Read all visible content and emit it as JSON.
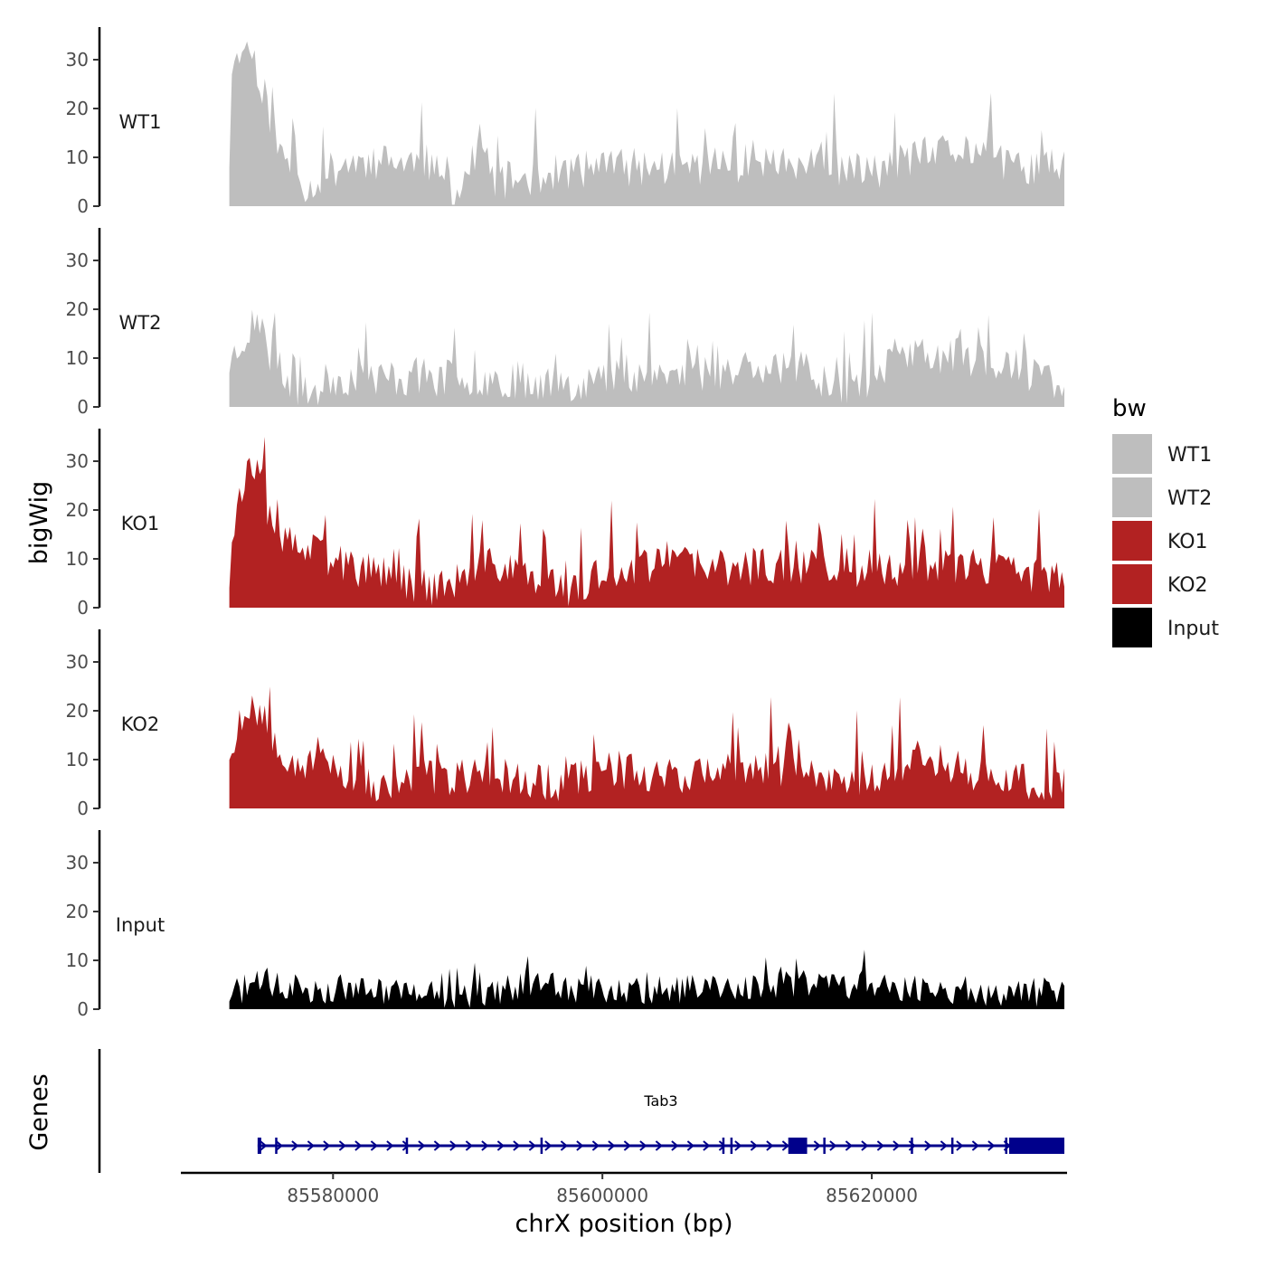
{
  "chart_data": {
    "type": "area",
    "y_axis_title": "bigWig",
    "gene_track_title": "Genes",
    "x_axis_title": "chrX position (bp)",
    "x_range": [
      85568700,
      85634500
    ],
    "data_x_range": [
      85572300,
      85634300
    ],
    "x_ticks": [
      {
        "value": 85580000,
        "label": "85580000"
      },
      {
        "value": 85600000,
        "label": "85600000"
      },
      {
        "value": 85620000,
        "label": "85620000"
      }
    ],
    "y_range": [
      0,
      36
    ],
    "y_ticks": [
      {
        "value": 0,
        "label": "0"
      },
      {
        "value": 10,
        "label": "10"
      },
      {
        "value": 20,
        "label": "20"
      },
      {
        "value": 30,
        "label": "30"
      }
    ],
    "tracks": [
      {
        "name": "WT1",
        "color": "#BEBEBE",
        "baseline": 8,
        "noise": 4,
        "spike_rate": 0.08,
        "spike_height": 8,
        "seed": 11,
        "anchors": [
          [
            85572300,
            10
          ],
          [
            85572700,
            28
          ],
          [
            85573300,
            34
          ],
          [
            85574200,
            30
          ],
          [
            85575000,
            22
          ],
          [
            85576000,
            11
          ],
          [
            85577500,
            7
          ],
          [
            85578200,
            3
          ],
          [
            85579000,
            6
          ],
          [
            85581000,
            9
          ],
          [
            85583000,
            9
          ],
          [
            85587000,
            9
          ],
          [
            85589000,
            2
          ],
          [
            85591000,
            12
          ],
          [
            85592000,
            5
          ],
          [
            85600000,
            8
          ],
          [
            85605000,
            8
          ],
          [
            85612000,
            9
          ],
          [
            85620000,
            7
          ],
          [
            85623000,
            10
          ],
          [
            85628000,
            12
          ],
          [
            85630000,
            8
          ],
          [
            85634300,
            8
          ]
        ]
      },
      {
        "name": "WT2",
        "color": "#BEBEBE",
        "baseline": 7,
        "noise": 4,
        "spike_rate": 0.08,
        "spike_height": 7,
        "seed": 23,
        "anchors": [
          [
            85572300,
            9
          ],
          [
            85573500,
            15
          ],
          [
            85574500,
            16
          ],
          [
            85575500,
            9
          ],
          [
            85577000,
            5
          ],
          [
            85578000,
            2
          ],
          [
            85580000,
            6
          ],
          [
            85586000,
            6
          ],
          [
            85590000,
            6
          ],
          [
            85598000,
            5
          ],
          [
            85603000,
            7
          ],
          [
            85608000,
            6
          ],
          [
            85611000,
            9
          ],
          [
            85615000,
            8
          ],
          [
            85617500,
            4
          ],
          [
            85620000,
            6
          ],
          [
            85622000,
            11
          ],
          [
            85628000,
            10
          ],
          [
            85634300,
            5
          ]
        ]
      },
      {
        "name": "KO1",
        "color": "#B22222",
        "baseline": 8,
        "noise": 4,
        "spike_rate": 0.09,
        "spike_height": 9,
        "seed": 37,
        "anchors": [
          [
            85572300,
            6
          ],
          [
            85572800,
            20
          ],
          [
            85573500,
            28
          ],
          [
            85574500,
            27
          ],
          [
            85575200,
            20
          ],
          [
            85576500,
            13
          ],
          [
            85578000,
            12
          ],
          [
            85580500,
            9
          ],
          [
            85583000,
            7
          ],
          [
            85586000,
            5
          ],
          [
            85588000,
            4
          ],
          [
            85592000,
            9
          ],
          [
            85596000,
            6
          ],
          [
            85597200,
            2
          ],
          [
            85600000,
            7
          ],
          [
            85605000,
            10
          ],
          [
            85608000,
            8
          ],
          [
            85614000,
            9
          ],
          [
            85620000,
            7
          ],
          [
            85624000,
            9
          ],
          [
            85628000,
            8
          ],
          [
            85632000,
            7
          ],
          [
            85634300,
            5
          ]
        ]
      },
      {
        "name": "KO2",
        "color": "#B22222",
        "baseline": 7,
        "noise": 4,
        "spike_rate": 0.09,
        "spike_height": 8,
        "seed": 53,
        "anchors": [
          [
            85572300,
            7
          ],
          [
            85573000,
            19
          ],
          [
            85574000,
            22
          ],
          [
            85575000,
            18
          ],
          [
            85576500,
            11
          ],
          [
            85578000,
            9
          ],
          [
            85579500,
            12
          ],
          [
            85580500,
            7
          ],
          [
            85583000,
            5
          ],
          [
            85584000,
            3
          ],
          [
            85586000,
            6
          ],
          [
            85592000,
            7
          ],
          [
            85597000,
            5
          ],
          [
            85600000,
            8
          ],
          [
            85606000,
            7
          ],
          [
            85612000,
            8
          ],
          [
            85618000,
            6
          ],
          [
            85622000,
            8
          ],
          [
            85624000,
            11
          ],
          [
            85628000,
            7
          ],
          [
            85632000,
            5
          ],
          [
            85634300,
            6
          ]
        ]
      },
      {
        "name": "Input",
        "color": "#000000",
        "baseline": 4,
        "noise": 3,
        "spike_rate": 0.07,
        "spike_height": 5,
        "seed": 71,
        "anchors": [
          [
            85572300,
            3
          ],
          [
            85574000,
            5
          ],
          [
            85580000,
            4
          ],
          [
            85586000,
            4
          ],
          [
            85589000,
            2
          ],
          [
            85594000,
            5
          ],
          [
            85600000,
            4
          ],
          [
            85606000,
            4
          ],
          [
            85614000,
            5
          ],
          [
            85620000,
            5
          ],
          [
            85626000,
            4
          ],
          [
            85631000,
            3
          ],
          [
            85634300,
            4
          ]
        ]
      }
    ],
    "legend": {
      "title": "bw",
      "entries": [
        {
          "label": "WT1",
          "color": "#BEBEBE"
        },
        {
          "label": "WT2",
          "color": "#BEBEBE"
        },
        {
          "label": "KO1",
          "color": "#B22222"
        },
        {
          "label": "KO2",
          "color": "#B22222"
        },
        {
          "label": "Input",
          "color": "#000000"
        }
      ]
    },
    "gene": {
      "name": "Tab3",
      "color": "#00008B",
      "start": 85574400,
      "end": 85634300,
      "strand": "+",
      "exons": [
        85574500,
        85575800,
        85585500,
        85595500,
        85609000,
        85609600,
        85614400,
        85616500,
        85623000,
        85626000,
        85630000
      ],
      "utrs": [
        [
          85613800,
          85615200
        ],
        [
          85630200,
          85634300
        ]
      ]
    }
  }
}
